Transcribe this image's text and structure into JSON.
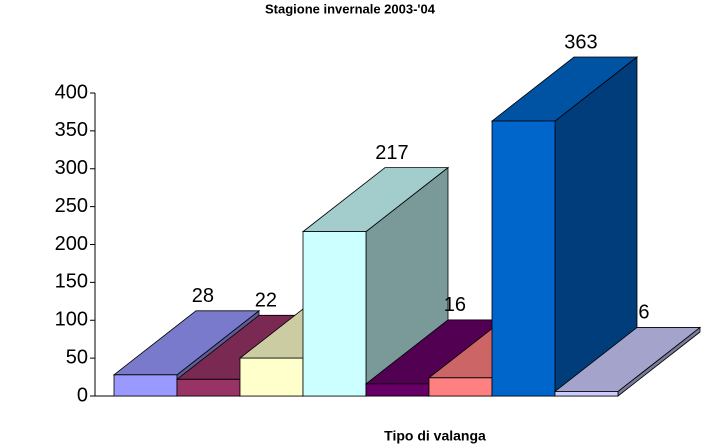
{
  "chart_data": {
    "type": "bar3d",
    "title": "Stagione invernale 2003-'04",
    "x_label": "Tipo di valanga",
    "values": [
      28,
      22,
      50,
      217,
      16,
      24,
      363,
      6
    ],
    "colors": [
      "#9999ff",
      "#993366",
      "#ffffcc",
      "#ccffff",
      "#660066",
      "#ff8080",
      "#0066cc",
      "#ccccff"
    ],
    "ylim": [
      0,
      400
    ],
    "yticks": [
      0,
      50,
      100,
      150,
      200,
      250,
      300,
      350,
      400
    ]
  }
}
